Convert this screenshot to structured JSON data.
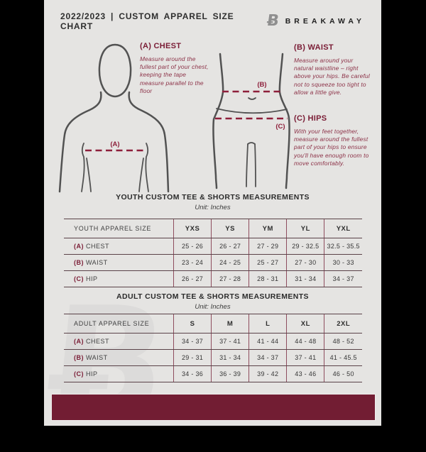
{
  "header": {
    "title": "2022/2023 | CUSTOM APPAREL SIZE CHART",
    "brand": "BREAKAWAY",
    "logo_glyph": "Ƀ"
  },
  "guide": {
    "chest": {
      "heading": "(A) CHEST",
      "body": "Measure around the fullest part of your chest, keeping the tape measure parallel to the floor"
    },
    "waist": {
      "heading": "(B) WAIST",
      "body": "Measure around your natural waistline – right above your hips. Be careful not to squeeze too tight to allow a little give."
    },
    "hips": {
      "heading": "(C) HIPS",
      "body": "With your feet together, measure around the fullest part of your hips to ensure you'll have enough room to move comfortably."
    },
    "labels": {
      "chest": "(A)",
      "waist": "(B)",
      "hips": "(C)"
    }
  },
  "tables": [
    {
      "title": "YOUTH CUSTOM TEE & SHORTS MEASUREMENTS",
      "unit": "Unit: Inches",
      "size_label": "YOUTH APPAREL SIZE",
      "sizes": [
        "YXS",
        "YS",
        "YM",
        "YL",
        "YXL"
      ],
      "rows": [
        {
          "prefix": "(A)",
          "label": "CHEST",
          "values": [
            "25 - 26",
            "26 - 27",
            "27 - 29",
            "29 - 32.5",
            "32.5 - 35.5"
          ]
        },
        {
          "prefix": "(B)",
          "label": "WAIST",
          "values": [
            "23 - 24",
            "24 - 25",
            "25 - 27",
            "27 - 30",
            "30 - 33"
          ]
        },
        {
          "prefix": "(C)",
          "label": "HIP",
          "values": [
            "26 - 27",
            "27 - 28",
            "28 - 31",
            "31 - 34",
            "34 - 37"
          ]
        }
      ]
    },
    {
      "title": "ADULT CUSTOM TEE & SHORTS MEASUREMENTS",
      "unit": "Unit: Inches",
      "size_label": "ADULT APPAREL SIZE",
      "sizes": [
        "S",
        "M",
        "L",
        "XL",
        "2XL"
      ],
      "rows": [
        {
          "prefix": "(A)",
          "label": "CHEST",
          "values": [
            "34 - 37",
            "37 - 41",
            "41 - 44",
            "44 - 48",
            "48 - 52"
          ]
        },
        {
          "prefix": "(B)",
          "label": "WAIST",
          "values": [
            "29 - 31",
            "31 - 34",
            "34 - 37",
            "37 - 41",
            "41 - 45.5"
          ]
        },
        {
          "prefix": "(C)",
          "label": "HIP",
          "values": [
            "34 - 36",
            "36 - 39",
            "39 - 42",
            "43 - 46",
            "46 - 50"
          ]
        }
      ]
    }
  ],
  "watermark_glyph": "Ƀ",
  "colors": {
    "footer_maroon": "#721d33",
    "heading_maroon": "#7a1c35",
    "body_maroon": "#8c3147",
    "dash_maroon": "#8e1f3b",
    "page_bg": "#e5e4e2",
    "figure_stroke": "#525252",
    "side_bars": "#000000"
  }
}
